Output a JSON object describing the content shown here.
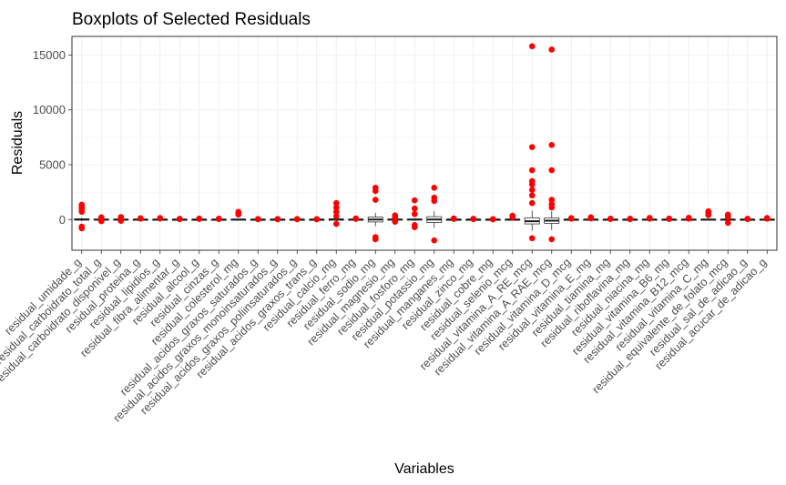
{
  "chart_data": {
    "type": "boxplot",
    "title": "Boxplots of Selected Residuals",
    "xlabel": "Variables",
    "ylabel": "Residuals",
    "ylim": [
      -2800,
      16700
    ],
    "yticks": [
      0,
      5000,
      10000,
      15000
    ],
    "grid": true,
    "outlier_color": "#ff0000",
    "box_fill": "#ffffff",
    "box_stroke": "#333333",
    "categories": [
      "residual_umidade_g",
      "residual_carboidrato_total_g",
      "residual_carboidrato_disponivel_g",
      "residual_proteina_g",
      "residual_lipidios_g",
      "residual_fibra_alimentar_g",
      "residual_alcool_g",
      "residual_cinzas_g",
      "residual_colesterol_mg",
      "residual_acidos_graxos_saturados_g",
      "residual_acidos_graxos_monoinsaturados_g",
      "residual_acidos_graxos_poliinsaturados_g",
      "residual_acidos_graxos_trans_g",
      "residual_calcio_mg",
      "residual_ferro_mg",
      "residual_sodio_mg",
      "residual_magnesio_mg",
      "residual_fosforo_mg",
      "residual_potassio_mg",
      "residual_manganes_mg",
      "residual_zinco_mg",
      "residual_cobre_mg",
      "residual_selenio_mcg",
      "residual_vitamina_A_RE_mcg",
      "residual_vitamina_A_RAE_mcg",
      "residual_vitamina_D_mcg",
      "residual_vitamina_E_mg",
      "residual_tiamina_mg",
      "residual_riboflavina_mg",
      "residual_niacina_mg",
      "residual_vitamina_B6_mg",
      "residual_vitamina_B12_mcg",
      "residual_vitamina_C_mg",
      "residual_equivalente_de_folato_mcg",
      "residual_sal_de_adicao_g",
      "residual_acucar_de_adicao_g"
    ],
    "boxes": [
      {
        "q1": -50,
        "median": 0,
        "q3": 60,
        "whisker_low": -150,
        "whisker_high": 160,
        "outliers": [
          -800,
          -650,
          700,
          900,
          1050,
          1200,
          1350,
          1250
        ]
      },
      {
        "q1": -20,
        "median": 0,
        "q3": 20,
        "whisker_low": -60,
        "whisker_high": 60,
        "outliers": [
          -150,
          150,
          200
        ]
      },
      {
        "q1": -20,
        "median": 0,
        "q3": 20,
        "whisker_low": -60,
        "whisker_high": 60,
        "outliers": [
          -120,
          130,
          180,
          220
        ]
      },
      {
        "q1": -10,
        "median": 0,
        "q3": 10,
        "whisker_low": -30,
        "whisker_high": 30,
        "outliers": [
          80,
          120
        ]
      },
      {
        "q1": -10,
        "median": 0,
        "q3": 10,
        "whisker_low": -30,
        "whisker_high": 30,
        "outliers": [
          90,
          140
        ]
      },
      {
        "q1": -5,
        "median": 0,
        "q3": 5,
        "whisker_low": -15,
        "whisker_high": 15,
        "outliers": [
          40,
          70
        ]
      },
      {
        "q1": -5,
        "median": 0,
        "q3": 5,
        "whisker_low": -15,
        "whisker_high": 15,
        "outliers": [
          60,
          90
        ]
      },
      {
        "q1": -5,
        "median": 0,
        "q3": 5,
        "whisker_low": -15,
        "whisker_high": 15,
        "outliers": [
          50,
          80
        ]
      },
      {
        "q1": -20,
        "median": 0,
        "q3": 20,
        "whisker_low": -60,
        "whisker_high": 60,
        "outliers": [
          450,
          600,
          700
        ]
      },
      {
        "q1": -5,
        "median": 0,
        "q3": 5,
        "whisker_low": -15,
        "whisker_high": 15,
        "outliers": [
          30,
          50
        ]
      },
      {
        "q1": -5,
        "median": 0,
        "q3": 5,
        "whisker_low": -15,
        "whisker_high": 15,
        "outliers": [
          30,
          50
        ]
      },
      {
        "q1": -5,
        "median": 0,
        "q3": 5,
        "whisker_low": -15,
        "whisker_high": 15,
        "outliers": [
          30,
          50
        ]
      },
      {
        "q1": -3,
        "median": 0,
        "q3": 3,
        "whisker_low": -8,
        "whisker_high": 8,
        "outliers": [
          20,
          35
        ]
      },
      {
        "q1": -60,
        "median": 0,
        "q3": 60,
        "whisker_low": -180,
        "whisker_high": 180,
        "outliers": [
          -400,
          300,
          700,
          1100,
          1500
        ]
      },
      {
        "q1": -10,
        "median": 0,
        "q3": 10,
        "whisker_low": -30,
        "whisker_high": 30,
        "outliers": [
          60,
          100
        ]
      },
      {
        "q1": -220,
        "median": 0,
        "q3": 220,
        "whisker_low": -600,
        "whisker_high": 600,
        "outliers": [
          -1800,
          -1600,
          1800,
          2600,
          2900
        ]
      },
      {
        "q1": -30,
        "median": 0,
        "q3": 30,
        "whisker_low": -90,
        "whisker_high": 90,
        "outliers": [
          -200,
          150,
          280,
          380
        ]
      },
      {
        "q1": -40,
        "median": 0,
        "q3": 40,
        "whisker_low": -120,
        "whisker_high": 120,
        "outliers": [
          -700,
          -500,
          500,
          1000,
          1750
        ]
      },
      {
        "q1": -260,
        "median": 0,
        "q3": 260,
        "whisker_low": -750,
        "whisker_high": 750,
        "outliers": [
          -1900,
          1700,
          2000,
          2900
        ]
      },
      {
        "q1": -5,
        "median": 0,
        "q3": 5,
        "whisker_low": -15,
        "whisker_high": 15,
        "outliers": [
          60,
          100
        ]
      },
      {
        "q1": -5,
        "median": 0,
        "q3": 5,
        "whisker_low": -15,
        "whisker_high": 15,
        "outliers": [
          40,
          70
        ]
      },
      {
        "q1": -3,
        "median": 0,
        "q3": 3,
        "whisker_low": -8,
        "whisker_high": 8,
        "outliers": [
          20,
          40
        ]
      },
      {
        "q1": -10,
        "median": 0,
        "q3": 10,
        "whisker_low": -30,
        "whisker_high": 30,
        "outliers": [
          200,
          350
        ]
      },
      {
        "q1": -400,
        "median": -150,
        "q3": 150,
        "whisker_low": -1000,
        "whisker_high": 800,
        "outliers": [
          -1700,
          1500,
          2200,
          2700,
          3200,
          3500,
          4500,
          6600,
          15800
        ]
      },
      {
        "q1": -350,
        "median": -100,
        "q3": 150,
        "whisker_low": -950,
        "whisker_high": 750,
        "outliers": [
          -1800,
          1100,
          1400,
          1800,
          4500,
          6800,
          15500
        ]
      },
      {
        "q1": -5,
        "median": 0,
        "q3": 5,
        "whisker_low": -15,
        "whisker_high": 15,
        "outliers": [
          80,
          130
        ]
      },
      {
        "q1": -10,
        "median": 0,
        "q3": 10,
        "whisker_low": -30,
        "whisker_high": 30,
        "outliers": [
          100,
          200
        ]
      },
      {
        "q1": -5,
        "median": 0,
        "q3": 5,
        "whisker_low": -15,
        "whisker_high": 15,
        "outliers": [
          50,
          80
        ]
      },
      {
        "q1": -5,
        "median": 0,
        "q3": 5,
        "whisker_low": -15,
        "whisker_high": 15,
        "outliers": [
          40,
          80
        ]
      },
      {
        "q1": -10,
        "median": 0,
        "q3": 10,
        "whisker_low": -30,
        "whisker_high": 30,
        "outliers": [
          80,
          150
        ]
      },
      {
        "q1": -5,
        "median": 0,
        "q3": 5,
        "whisker_low": -15,
        "whisker_high": 15,
        "outliers": [
          50,
          90
        ]
      },
      {
        "q1": -10,
        "median": 0,
        "q3": 10,
        "whisker_low": -30,
        "whisker_high": 30,
        "outliers": [
          80,
          160
        ]
      },
      {
        "q1": -20,
        "median": 0,
        "q3": 20,
        "whisker_low": -60,
        "whisker_high": 60,
        "outliers": [
          400,
          550,
          650,
          750
        ]
      },
      {
        "q1": -15,
        "median": 0,
        "q3": 15,
        "whisker_low": -45,
        "whisker_high": 45,
        "outliers": [
          -300,
          200,
          350,
          450
        ]
      },
      {
        "q1": -5,
        "median": 0,
        "q3": 5,
        "whisker_low": -15,
        "whisker_high": 15,
        "outliers": [
          40,
          70
        ]
      },
      {
        "q1": -8,
        "median": 0,
        "q3": 8,
        "whisker_low": -25,
        "whisker_high": 25,
        "outliers": [
          80,
          140
        ]
      }
    ]
  }
}
